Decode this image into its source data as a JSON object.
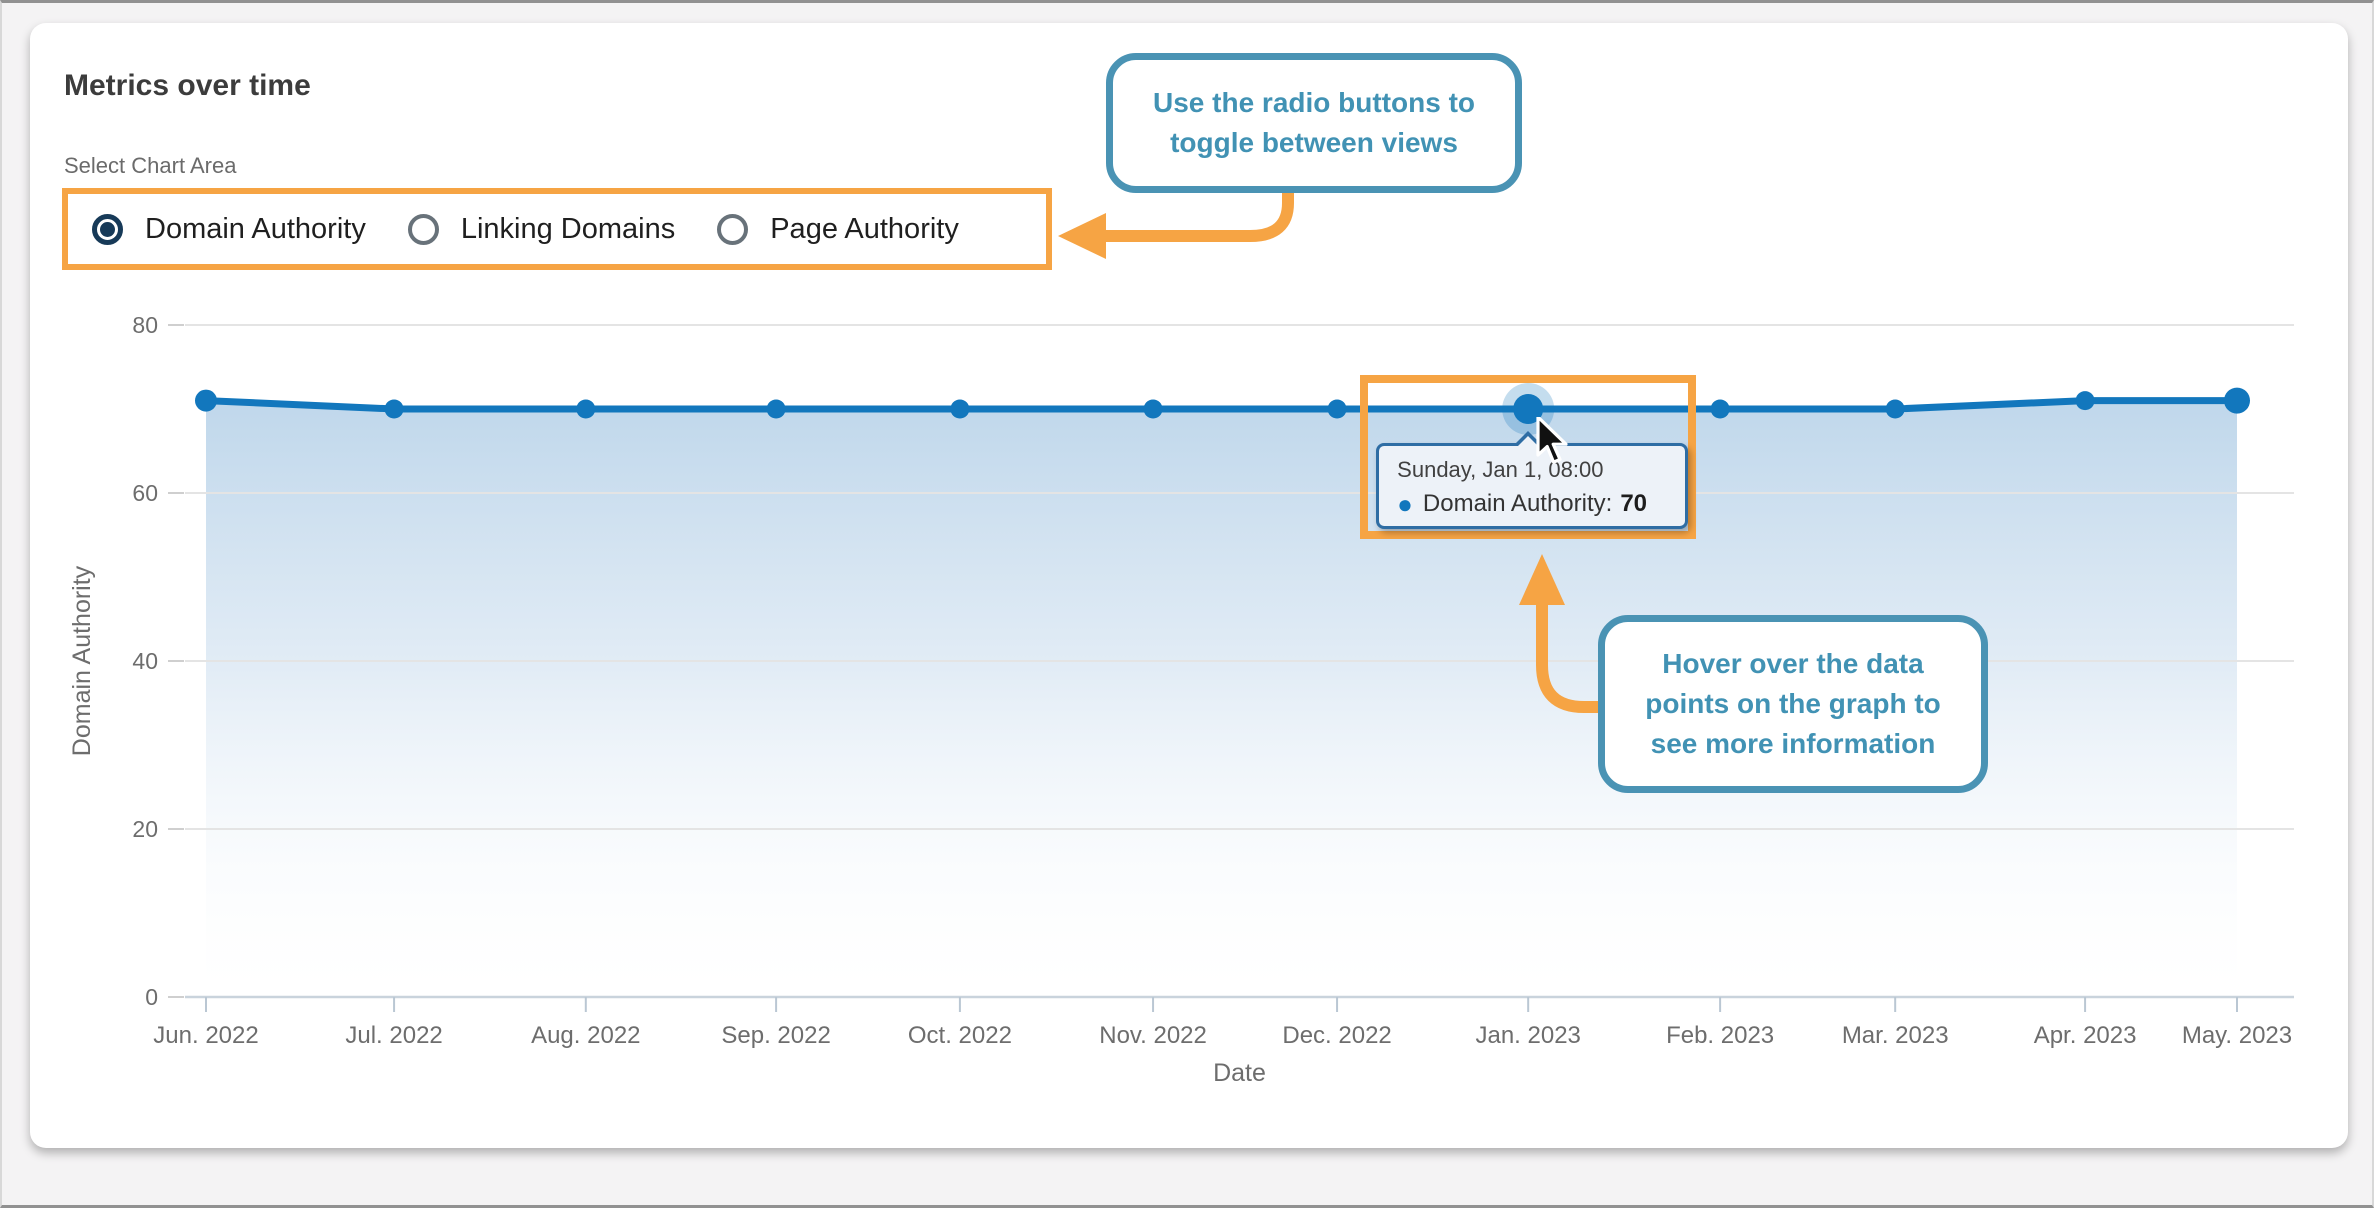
{
  "card": {
    "title": "Metrics over time",
    "select_label": "Select Chart Area",
    "radios": [
      {
        "label": "Domain Authority",
        "selected": true
      },
      {
        "label": "Linking Domains",
        "selected": false
      },
      {
        "label": "Page Authority",
        "selected": false
      }
    ]
  },
  "callouts": {
    "radio_tip": "Use the radio buttons to toggle between views",
    "hover_tip": "Hover over the data points on the graph to see more information"
  },
  "tooltip": {
    "title": "Sunday, Jan 1, 08:00",
    "bullet": "●",
    "series_label": "Domain Authority:",
    "value": "70"
  },
  "chart_data": {
    "type": "area",
    "x": [
      "Jun. 2022",
      "Jul. 2022",
      "Aug. 2022",
      "Sep. 2022",
      "Oct. 2022",
      "Nov. 2022",
      "Dec. 2022",
      "Jan. 2023",
      "Feb. 2023",
      "Mar. 2023",
      "Apr. 2023",
      "May. 2023"
    ],
    "series": [
      {
        "name": "Domain Authority",
        "values": [
          71,
          70,
          70,
          70,
          70,
          70,
          70,
          70,
          70,
          70,
          71,
          71
        ]
      }
    ],
    "xlabel": "Date",
    "ylabel": "Domain Authority",
    "ylim": [
      0,
      80
    ],
    "yticks": [
      0,
      20,
      40,
      60,
      80
    ],
    "grid": true,
    "legend": "none",
    "hover": {
      "category": "Jan. 2023",
      "value": 70
    }
  },
  "colors": {
    "line": "#1277bd",
    "area_top": "#bcd5ea",
    "orange": "#f6a444",
    "teal": "#4a93b4",
    "tooltip_border": "#2e6da4",
    "tooltip_bg": "#edf2f8",
    "radio_selected": "#173a58"
  }
}
